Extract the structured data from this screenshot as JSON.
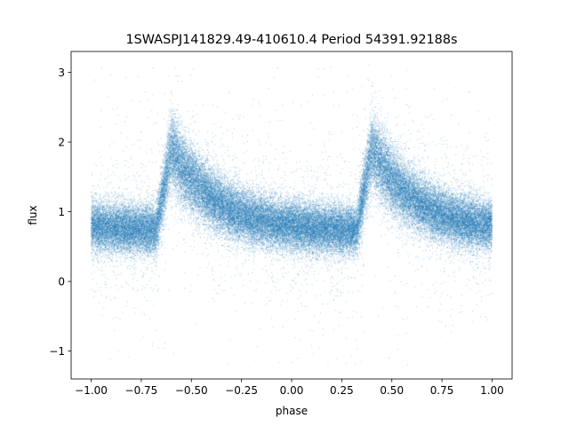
{
  "chart_data": {
    "type": "scatter",
    "title": "1SWASPJ141829.49-410610.4 Period 54391.92188s",
    "xlabel": "phase",
    "ylabel": "flux",
    "xlim": [
      -1.1,
      1.1
    ],
    "ylim": [
      -1.4,
      3.3
    ],
    "x_ticks": [
      -1.0,
      -0.75,
      -0.5,
      -0.25,
      0.0,
      0.25,
      0.5,
      0.75,
      1.0
    ],
    "x_tick_labels": [
      "−1.00",
      "−0.75",
      "−0.50",
      "−0.25",
      "0.00",
      "0.25",
      "0.50",
      "0.75",
      "1.00"
    ],
    "y_ticks": [
      -1,
      0,
      1,
      2,
      3
    ],
    "y_tick_labels": [
      "−1",
      "0",
      "1",
      "2",
      "3"
    ],
    "grid": false,
    "marker_color": "#1f77b4",
    "curve": {
      "phase_range": [
        -1.0,
        1.0
      ],
      "period_in_phase": 1.0,
      "baseline_flux": 0.72,
      "rise_start_phase": -0.68,
      "peak_phase": -0.6,
      "peak_flux": 1.9,
      "flux_before_rise": 0.68,
      "scatter_sigma": 0.22,
      "outlier_flux_range": [
        -1.2,
        3.1
      ],
      "approx_point_count": 60000
    }
  }
}
